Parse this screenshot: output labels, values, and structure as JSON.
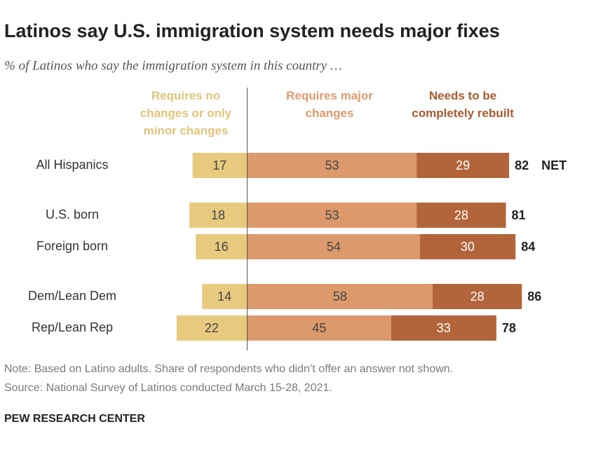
{
  "chart_data": {
    "type": "diverging_bar",
    "title": "Latinos say U.S. immigration system needs major fixes",
    "subtitle": "% of Latinos who say the immigration system in this country …",
    "categories": [
      "All Hispanics",
      "U.S. born",
      "Foreign born",
      "Dem/Lean Dem",
      "Rep/Lean Rep"
    ],
    "series": [
      {
        "name": "Requires no changes or only minor changes",
        "color": "#e8ca7f",
        "values": [
          17,
          18,
          16,
          14,
          22
        ]
      },
      {
        "name": "Requires major changes",
        "color": "#dc9a6c",
        "values": [
          53,
          53,
          54,
          58,
          45
        ]
      },
      {
        "name": "Needs to be completely rebuilt",
        "color": "#b2653a",
        "values": [
          29,
          28,
          30,
          28,
          33
        ]
      }
    ],
    "net": [
      82,
      81,
      84,
      86,
      78
    ],
    "net_label": "NET",
    "note": "Note: Based on Latino adults. Share of respondents who didn’t offer an answer not shown.",
    "source": "Source: National Survey of Latinos conducted March 15-28, 2021.",
    "footer": "PEW RESEARCH CENTER"
  }
}
